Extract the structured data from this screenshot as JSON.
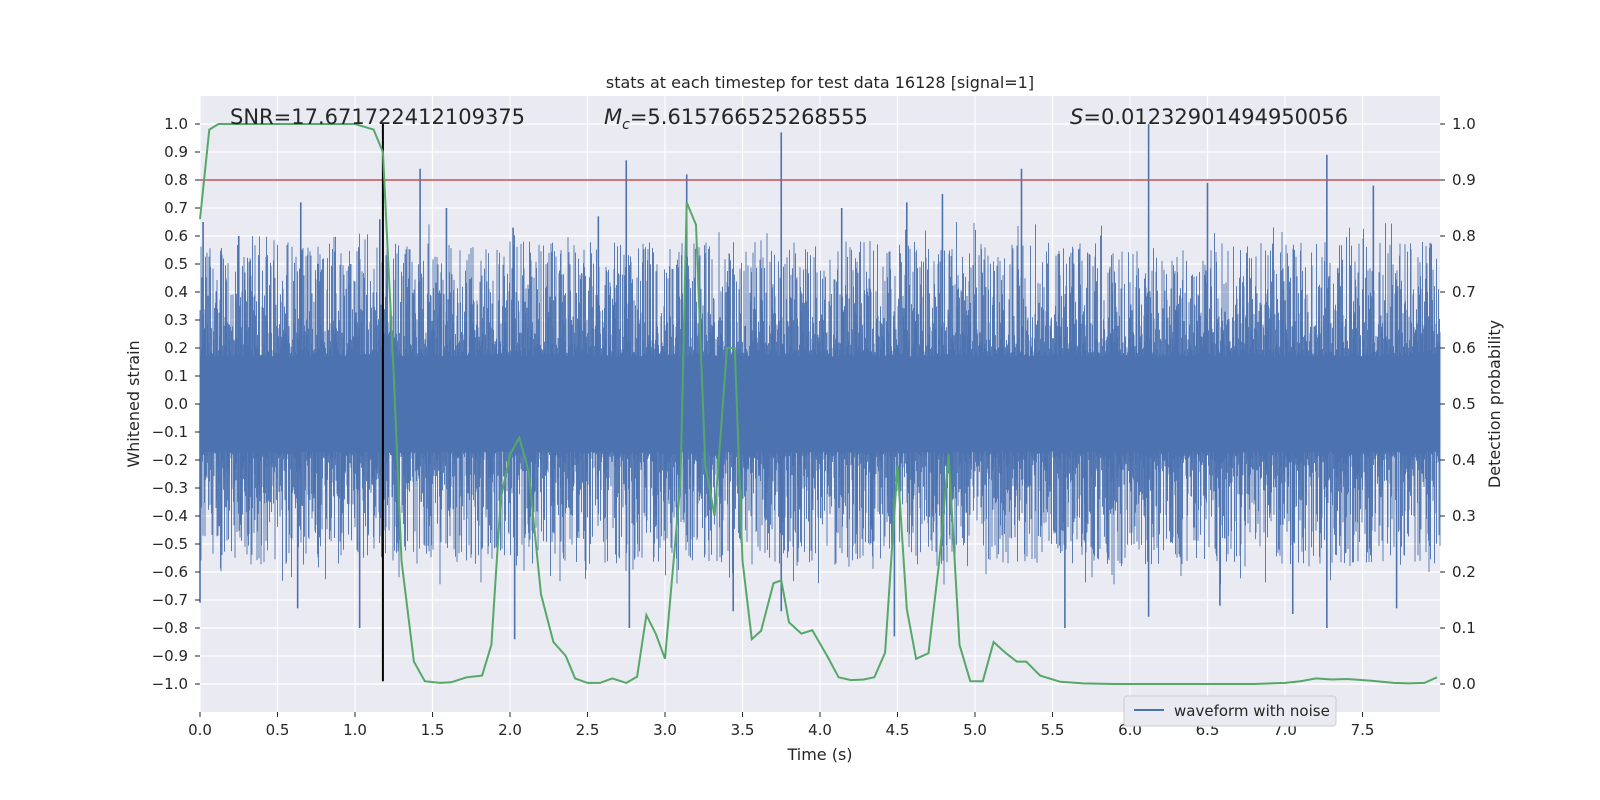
{
  "chart_data": {
    "type": "line",
    "title": "stats at each timestep for test data 16128 [signal=1]",
    "xlabel": "Time (s)",
    "ylabel": "Whitened strain",
    "y2label": "Detection probability",
    "xlim": [
      0.0,
      8.0
    ],
    "ylim": [
      -1.1,
      1.1
    ],
    "y2lim": [
      -0.05,
      1.05
    ],
    "x_ticks": [
      0.0,
      0.5,
      1.0,
      1.5,
      2.0,
      2.5,
      3.0,
      3.5,
      4.0,
      4.5,
      5.0,
      5.5,
      6.0,
      6.5,
      7.0,
      7.5
    ],
    "x_tick_labels": [
      "0.0",
      "0.5",
      "1.0",
      "1.5",
      "2.0",
      "2.5",
      "3.0",
      "3.5",
      "4.0",
      "4.5",
      "5.0",
      "5.5",
      "6.0",
      "6.5",
      "7.0",
      "7.5"
    ],
    "y_ticks": [
      1.0,
      0.9,
      0.8,
      0.7,
      0.6,
      0.5,
      0.4,
      0.3,
      0.2,
      0.1,
      0.0,
      -0.1,
      -0.2,
      -0.3,
      -0.4,
      -0.5,
      -0.6,
      -0.7,
      -0.8,
      -0.9,
      -1.0
    ],
    "y_tick_labels": [
      "1.0",
      "0.9",
      "0.8",
      "0.7",
      "0.6",
      "0.5",
      "0.4",
      "0.3",
      "0.2",
      "0.1",
      "0.0",
      "−0.1",
      "−0.2",
      "−0.3",
      "−0.4",
      "−0.5",
      "−0.6",
      "−0.7",
      "−0.8",
      "−0.9",
      "−1.0"
    ],
    "y2_ticks": [
      1.0,
      0.9,
      0.8,
      0.7,
      0.6,
      0.5,
      0.4,
      0.3,
      0.2,
      0.1,
      0.0
    ],
    "y2_tick_labels": [
      "1.0",
      "0.9",
      "0.8",
      "0.7",
      "0.6",
      "0.5",
      "0.4",
      "0.3",
      "0.2",
      "0.1",
      "0.0"
    ],
    "annotations": [
      {
        "name": "snr-annotation",
        "text": "SNR=17.671722412109375"
      },
      {
        "name": "chirp-mass-annotation",
        "symbol": "M",
        "subscript": "c",
        "text": "=5.615766525268555"
      },
      {
        "name": "spin-annotation",
        "symbol": "S",
        "text": "=0.01232901494950056"
      }
    ],
    "legend": {
      "entries": [
        {
          "label": "waveform with noise",
          "color": "#4c72b0"
        }
      ],
      "location": "lower-right"
    },
    "threshold": {
      "axis": "y2",
      "value": 0.9,
      "color": "#c44e52"
    },
    "marker_time": 1.18,
    "series": [
      {
        "name": "waveform with noise",
        "axis": "y",
        "color": "#4c72b0",
        "kind": "noise",
        "typical_range": [
          -0.4,
          0.4
        ],
        "peaks": [
          {
            "x": 0.02,
            "v": 0.65
          },
          {
            "x": 0.25,
            "v": 0.6
          },
          {
            "x": 0.65,
            "v": 0.72
          },
          {
            "x": 1.16,
            "v": 0.66
          },
          {
            "x": 1.42,
            "v": 0.84
          },
          {
            "x": 1.59,
            "v": 0.7
          },
          {
            "x": 2.02,
            "v": 0.63
          },
          {
            "x": 2.57,
            "v": 0.67
          },
          {
            "x": 2.75,
            "v": 0.87
          },
          {
            "x": 3.14,
            "v": 0.82
          },
          {
            "x": 3.75,
            "v": 0.97
          },
          {
            "x": 4.14,
            "v": 0.7
          },
          {
            "x": 4.56,
            "v": 0.72
          },
          {
            "x": 4.79,
            "v": 0.75
          },
          {
            "x": 5.3,
            "v": 0.84
          },
          {
            "x": 6.12,
            "v": 1.0
          },
          {
            "x": 6.5,
            "v": 0.79
          },
          {
            "x": 7.27,
            "v": 0.89
          },
          {
            "x": 7.57,
            "v": 0.78
          },
          {
            "x": 0.0,
            "v": -0.71
          },
          {
            "x": 0.63,
            "v": -0.73
          },
          {
            "x": 1.03,
            "v": -0.8
          },
          {
            "x": 2.03,
            "v": -0.84
          },
          {
            "x": 2.77,
            "v": -0.8
          },
          {
            "x": 3.44,
            "v": -0.74
          },
          {
            "x": 3.75,
            "v": -0.74
          },
          {
            "x": 4.48,
            "v": -0.83
          },
          {
            "x": 5.58,
            "v": -0.8
          },
          {
            "x": 6.12,
            "v": -0.76
          },
          {
            "x": 6.58,
            "v": -0.72
          },
          {
            "x": 7.05,
            "v": -0.75
          },
          {
            "x": 7.27,
            "v": -0.8
          },
          {
            "x": 7.72,
            "v": -0.73
          }
        ]
      },
      {
        "name": "detection probability",
        "axis": "y2",
        "color": "#55a868",
        "x": [
          0.0,
          0.06,
          0.12,
          0.2,
          0.5,
          0.8,
          1.0,
          1.12,
          1.18,
          1.25,
          1.3,
          1.38,
          1.45,
          1.55,
          1.62,
          1.72,
          1.82,
          1.88,
          1.94,
          2.0,
          2.06,
          2.12,
          2.2,
          2.28,
          2.36,
          2.42,
          2.5,
          2.58,
          2.66,
          2.75,
          2.82,
          2.88,
          2.94,
          3.0,
          3.1,
          3.14,
          3.2,
          3.26,
          3.32,
          3.4,
          3.45,
          3.5,
          3.56,
          3.62,
          3.7,
          3.75,
          3.8,
          3.88,
          3.95,
          4.05,
          4.12,
          4.2,
          4.28,
          4.35,
          4.42,
          4.5,
          4.56,
          4.62,
          4.7,
          4.77,
          4.83,
          4.9,
          4.97,
          5.05,
          5.12,
          5.2,
          5.27,
          5.33,
          5.42,
          5.55,
          5.7,
          5.9,
          6.2,
          6.5,
          6.8,
          7.0,
          7.1,
          7.2,
          7.3,
          7.4,
          7.55,
          7.7,
          7.8,
          7.9,
          7.98
        ],
        "values": [
          0.83,
          0.99,
          1.0,
          1.0,
          1.0,
          1.0,
          1.0,
          0.99,
          0.95,
          0.55,
          0.22,
          0.04,
          0.005,
          0.002,
          0.003,
          0.012,
          0.015,
          0.07,
          0.33,
          0.41,
          0.44,
          0.38,
          0.16,
          0.075,
          0.05,
          0.01,
          0.002,
          0.002,
          0.01,
          0.002,
          0.013,
          0.123,
          0.09,
          0.045,
          0.36,
          0.86,
          0.82,
          0.39,
          0.3,
          0.6,
          0.6,
          0.22,
          0.08,
          0.095,
          0.18,
          0.185,
          0.11,
          0.09,
          0.096,
          0.048,
          0.012,
          0.007,
          0.008,
          0.012,
          0.056,
          0.39,
          0.134,
          0.045,
          0.055,
          0.22,
          0.41,
          0.07,
          0.005,
          0.005,
          0.075,
          0.055,
          0.04,
          0.04,
          0.015,
          0.004,
          0.001,
          0.0,
          0.0,
          0.0,
          0.0,
          0.002,
          0.005,
          0.01,
          0.008,
          0.009,
          0.006,
          0.002,
          0.001,
          0.002,
          0.012
        ]
      }
    ]
  }
}
